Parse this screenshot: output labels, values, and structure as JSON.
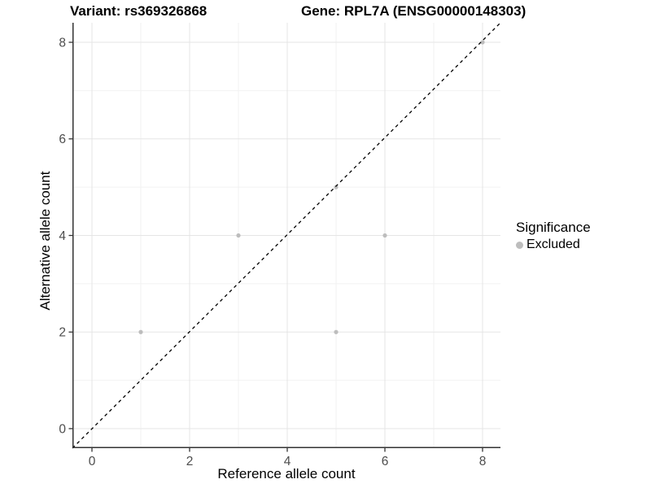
{
  "titles": {
    "variant": "Variant: rs369326868",
    "gene": "Gene: RPL7A (ENSG00000148303)"
  },
  "legend": {
    "title": "Significance",
    "items": [
      {
        "label": "Excluded",
        "color": "#bdbdbd"
      }
    ]
  },
  "chart_data": {
    "type": "scatter",
    "title": "Variant: rs369326868 — Gene: RPL7A (ENSG00000148303)",
    "xlabel": "Reference allele count",
    "ylabel": "Alternative allele count",
    "xlim": [
      -0.4,
      8.4
    ],
    "ylim": [
      -0.4,
      8.4
    ],
    "x_ticks": [
      0,
      2,
      4,
      6,
      8
    ],
    "y_ticks": [
      0,
      2,
      4,
      6,
      8
    ],
    "minor_gridlines": [
      1,
      3,
      5,
      7
    ],
    "grid": true,
    "legend_position": "right",
    "series": [
      {
        "name": "Excluded",
        "color": "#bdbdbd",
        "points": [
          [
            1,
            2
          ],
          [
            3,
            4
          ],
          [
            5,
            2
          ],
          [
            5,
            5
          ],
          [
            6,
            4
          ],
          [
            8,
            8
          ]
        ]
      }
    ],
    "reference_line": {
      "type": "identity",
      "style": "dashed",
      "color": "#000000"
    }
  },
  "style": {
    "major_grid_color": "#e5e5e5",
    "minor_grid_color": "#f2f2f2",
    "axis_line_color": "#333333",
    "tick_color": "#333333",
    "tick_label_color": "#4d4d4d",
    "point_radius": 2.6
  }
}
